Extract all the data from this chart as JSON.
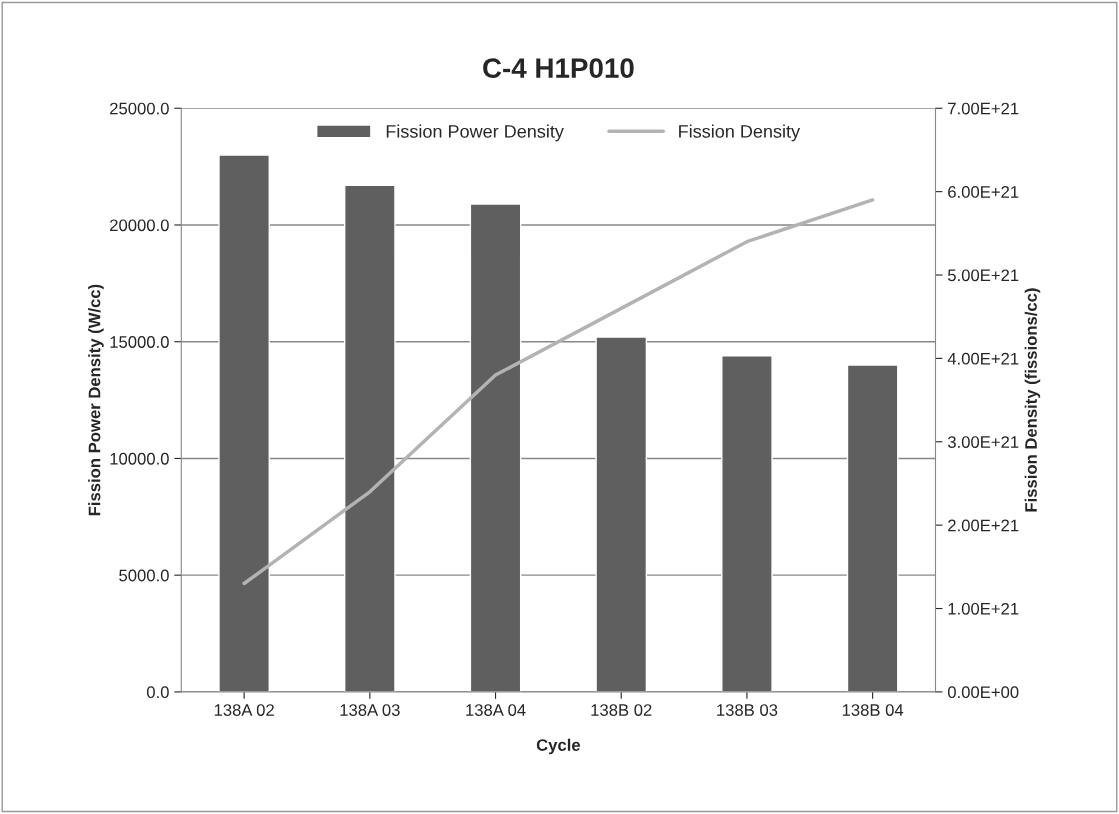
{
  "chart_data": {
    "type": "bar",
    "title": "C-4 H1P010",
    "xlabel": "Cycle",
    "ylabel": "Fission Power Density (W/cc)",
    "y2label": "Fission Density (fissions/cc)",
    "categories": [
      "138A 02",
      "138A 03",
      "138A 04",
      "138B 02",
      "138B 03",
      "138B 04"
    ],
    "series": [
      {
        "name": "Fission Power Density",
        "color": "#5f5f5f",
        "values": [
          23000,
          21700,
          20900,
          15200,
          14400,
          14000
        ]
      },
      {
        "name": "Fission Density",
        "type": "line",
        "axis": "y2",
        "color": "#b3b3b3",
        "values": [
          1.3e+21,
          2.4e+21,
          3.8e+21,
          4.6e+21,
          5.4e+21,
          5.9e+21
        ]
      }
    ],
    "ylim": [
      0,
      25000
    ],
    "yticks": [
      {
        "value": 0,
        "label": "0.0"
      },
      {
        "value": 5000,
        "label": "5000.0"
      },
      {
        "value": 10000,
        "label": "10000.0"
      },
      {
        "value": 15000,
        "label": "15000.0"
      },
      {
        "value": 20000,
        "label": "20000.0"
      },
      {
        "value": 25000,
        "label": "25000.0"
      }
    ],
    "y2lim": [
      0,
      7e+21
    ],
    "y2ticks": [
      {
        "value": 0,
        "label": "0.00E+00"
      },
      {
        "value": 1e+21,
        "label": "1.00E+21"
      },
      {
        "value": 2e+21,
        "label": "2.00E+21"
      },
      {
        "value": 3e+21,
        "label": "3.00E+21"
      },
      {
        "value": 4e+21,
        "label": "4.00E+21"
      },
      {
        "value": 5e+21,
        "label": "5.00E+21"
      },
      {
        "value": 6e+21,
        "label": "6.00E+21"
      },
      {
        "value": 7e+21,
        "label": "7.00E+21"
      }
    ],
    "grid": "y",
    "legend": "top",
    "marker": "none",
    "line_style": "solid"
  }
}
